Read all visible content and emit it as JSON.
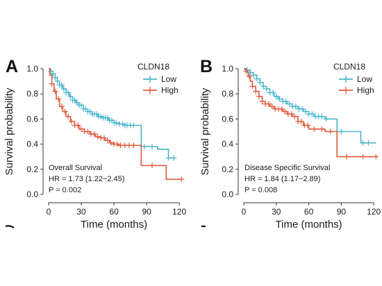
{
  "chart_data": [
    {
      "type": "line",
      "panel_label": "A",
      "xlabel": "Time (months)",
      "ylabel": "Survival probability",
      "xlim": [
        0,
        125
      ],
      "ylim": [
        0,
        1.05
      ],
      "xticks": [
        "0",
        "30",
        "60",
        "90",
        "120"
      ],
      "yticks": [
        "0.0",
        "0.2",
        "0.4",
        "0.6",
        "0.8",
        "1.0"
      ],
      "legend": {
        "title": "CLDN18",
        "position": "top-right"
      },
      "annotations": [
        "Overall Survival",
        "HR = 1.73 (1.22−2.45)",
        "P = 0.002"
      ],
      "series": [
        {
          "name": "Low",
          "color": "#4ab5cc",
          "x": [
            0,
            2,
            4,
            6,
            8,
            10,
            13,
            16,
            19,
            22,
            25,
            28,
            32,
            36,
            40,
            45,
            50,
            55,
            60,
            65,
            70,
            75,
            80,
            82,
            85,
            90,
            100,
            110,
            115
          ],
          "y": [
            1.0,
            0.98,
            0.96,
            0.93,
            0.9,
            0.87,
            0.84,
            0.81,
            0.78,
            0.75,
            0.73,
            0.71,
            0.68,
            0.66,
            0.64,
            0.62,
            0.61,
            0.59,
            0.57,
            0.56,
            0.55,
            0.55,
            0.55,
            0.55,
            0.38,
            0.38,
            0.36,
            0.29,
            0.29
          ],
          "censored_x": [
            2,
            4,
            6,
            8,
            10,
            12,
            14,
            16,
            18,
            20,
            22,
            24,
            26,
            28,
            30,
            32,
            34,
            36,
            38,
            40,
            42,
            44,
            46,
            48,
            50,
            52,
            54,
            56,
            58,
            60,
            62,
            65,
            68,
            70,
            72,
            75,
            78,
            88,
            95,
            110,
            115
          ]
        },
        {
          "name": "High",
          "color": "#e05a3d",
          "x": [
            0,
            1,
            3,
            5,
            7,
            10,
            13,
            16,
            20,
            24,
            28,
            33,
            38,
            43,
            48,
            52,
            56,
            60,
            64,
            68,
            72,
            78,
            83,
            85,
            90,
            95,
            100,
            108,
            112,
            122
          ],
          "y": [
            1.0,
            0.95,
            0.88,
            0.82,
            0.76,
            0.7,
            0.66,
            0.62,
            0.58,
            0.55,
            0.52,
            0.5,
            0.48,
            0.46,
            0.45,
            0.43,
            0.41,
            0.4,
            0.39,
            0.39,
            0.39,
            0.39,
            0.39,
            0.23,
            0.23,
            0.23,
            0.23,
            0.12,
            0.12,
            0.12
          ],
          "censored_x": [
            3,
            6,
            9,
            12,
            15,
            18,
            21,
            24,
            27,
            30,
            33,
            36,
            39,
            42,
            45,
            48,
            51,
            54,
            57,
            60,
            63,
            66,
            70,
            74,
            78,
            95,
            122
          ]
        }
      ]
    },
    {
      "type": "line",
      "panel_label": "B",
      "xlabel": "Time (months)",
      "ylabel": "Survival probability",
      "xlim": [
        0,
        125
      ],
      "ylim": [
        0,
        1.05
      ],
      "xticks": [
        "0",
        "30",
        "60",
        "90",
        "120"
      ],
      "yticks": [
        "0.0",
        "0.2",
        "0.4",
        "0.6",
        "0.8",
        "1.0"
      ],
      "legend": {
        "title": "CLDN18",
        "position": "top-right"
      },
      "annotations": [
        "Disease Specific Survival",
        "HR = 1.84 (1.17−2.89)",
        "P = 0.008"
      ],
      "series": [
        {
          "name": "Low",
          "color": "#4ab5cc",
          "x": [
            0,
            3,
            6,
            9,
            12,
            15,
            18,
            21,
            24,
            28,
            32,
            36,
            40,
            45,
            50,
            55,
            60,
            65,
            70,
            75,
            80,
            84,
            86,
            90,
            100,
            108,
            115,
            122
          ],
          "y": [
            1.0,
            0.99,
            0.97,
            0.95,
            0.92,
            0.89,
            0.86,
            0.84,
            0.81,
            0.78,
            0.76,
            0.74,
            0.72,
            0.7,
            0.68,
            0.66,
            0.64,
            0.62,
            0.62,
            0.6,
            0.6,
            0.6,
            0.5,
            0.5,
            0.5,
            0.41,
            0.41,
            0.41
          ],
          "censored_x": [
            3,
            6,
            9,
            12,
            15,
            18,
            21,
            24,
            27,
            30,
            33,
            36,
            39,
            42,
            45,
            48,
            51,
            54,
            57,
            60,
            63,
            66,
            69,
            72,
            76,
            90,
            110,
            115
          ]
        },
        {
          "name": "High",
          "color": "#e05a3d",
          "x": [
            0,
            2,
            4,
            6,
            8,
            11,
            14,
            17,
            20,
            24,
            28,
            32,
            36,
            40,
            45,
            50,
            55,
            60,
            65,
            70,
            75,
            80,
            84,
            86,
            90,
            100,
            110,
            122
          ],
          "y": [
            1.0,
            0.98,
            0.94,
            0.9,
            0.86,
            0.82,
            0.78,
            0.74,
            0.72,
            0.7,
            0.68,
            0.68,
            0.66,
            0.64,
            0.62,
            0.58,
            0.55,
            0.52,
            0.52,
            0.52,
            0.5,
            0.5,
            0.5,
            0.3,
            0.3,
            0.3,
            0.3,
            0.3
          ],
          "censored_x": [
            2,
            5,
            8,
            11,
            14,
            17,
            20,
            23,
            26,
            29,
            32,
            35,
            38,
            41,
            44,
            47,
            50,
            53,
            56,
            59,
            65,
            72,
            80,
            95,
            110,
            122
          ]
        }
      ]
    }
  ]
}
